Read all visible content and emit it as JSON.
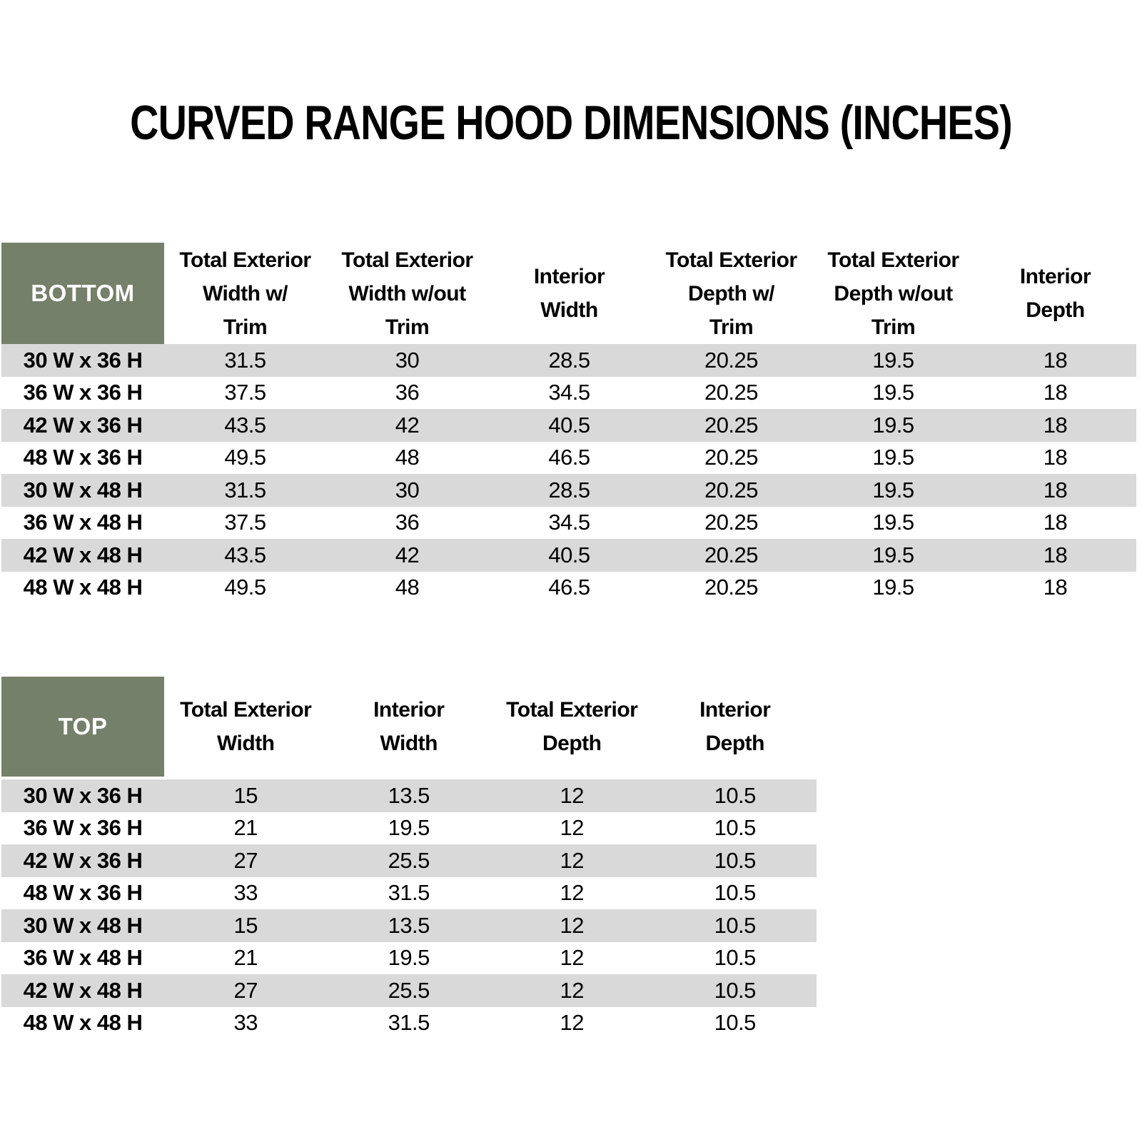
{
  "title": "CURVED RANGE HOOD DIMENSIONS (INCHES)",
  "colors": {
    "header_green": "#75806A",
    "row_stripe_gray": "#D9D9D9",
    "row_stripe_white": "#FFFFFF",
    "header_label_text": "#FFFFFF",
    "body_text": "#000000"
  },
  "bottom_table": {
    "label": "BOTTOM",
    "columns": [
      "Total Exterior\nWidth w/\nTrim",
      "Total Exterior\nWidth w/out\nTrim",
      "Interior\nWidth",
      "Total Exterior\nDepth w/\nTrim",
      "Total Exterior\nDepth w/out\nTrim",
      "Interior\nDepth"
    ],
    "rows": [
      {
        "size": "30 W x 36 H",
        "values": [
          "31.5",
          "30",
          "28.5",
          "20.25",
          "19.5",
          "18"
        ]
      },
      {
        "size": "36 W x 36 H",
        "values": [
          "37.5",
          "36",
          "34.5",
          "20.25",
          "19.5",
          "18"
        ]
      },
      {
        "size": "42 W x 36 H",
        "values": [
          "43.5",
          "42",
          "40.5",
          "20.25",
          "19.5",
          "18"
        ]
      },
      {
        "size": "48 W x 36 H",
        "values": [
          "49.5",
          "48",
          "46.5",
          "20.25",
          "19.5",
          "18"
        ]
      },
      {
        "size": "30 W x 48 H",
        "values": [
          "31.5",
          "30",
          "28.5",
          "20.25",
          "19.5",
          "18"
        ]
      },
      {
        "size": "36 W x 48 H",
        "values": [
          "37.5",
          "36",
          "34.5",
          "20.25",
          "19.5",
          "18"
        ]
      },
      {
        "size": "42 W x 48 H",
        "values": [
          "43.5",
          "42",
          "40.5",
          "20.25",
          "19.5",
          "18"
        ]
      },
      {
        "size": "48 W x 48 H",
        "values": [
          "49.5",
          "48",
          "46.5",
          "20.25",
          "19.5",
          "18"
        ]
      }
    ]
  },
  "top_table": {
    "label": "TOP",
    "columns": [
      "Total Exterior\nWidth",
      "Interior\nWidth",
      "Total Exterior\nDepth",
      "Interior\nDepth"
    ],
    "rows": [
      {
        "size": "30 W x 36 H",
        "values": [
          "15",
          "13.5",
          "12",
          "10.5"
        ]
      },
      {
        "size": "36 W x 36 H",
        "values": [
          "21",
          "19.5",
          "12",
          "10.5"
        ]
      },
      {
        "size": "42 W x 36 H",
        "values": [
          "27",
          "25.5",
          "12",
          "10.5"
        ]
      },
      {
        "size": "48 W x 36 H",
        "values": [
          "33",
          "31.5",
          "12",
          "10.5"
        ]
      },
      {
        "size": "30 W x 48 H",
        "values": [
          "15",
          "13.5",
          "12",
          "10.5"
        ]
      },
      {
        "size": "36 W x 48 H",
        "values": [
          "21",
          "19.5",
          "12",
          "10.5"
        ]
      },
      {
        "size": "42 W x 48 H",
        "values": [
          "27",
          "25.5",
          "12",
          "10.5"
        ]
      },
      {
        "size": "48 W x 48 H",
        "values": [
          "33",
          "31.5",
          "12",
          "10.5"
        ]
      }
    ]
  }
}
